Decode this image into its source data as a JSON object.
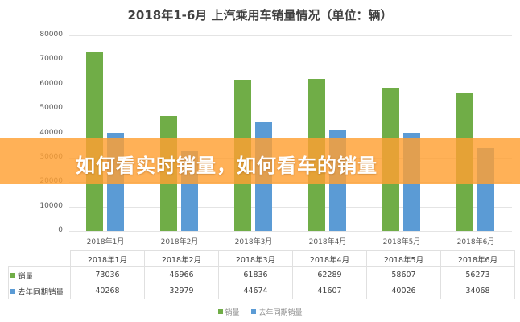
{
  "chart_data": {
    "type": "bar",
    "title": "2018年1-6月 上汽乘用车销量情况（单位：辆）",
    "categories": [
      "2018年1月",
      "2018年2月",
      "2018年3月",
      "2018年4月",
      "2018年5月",
      "2018年6月"
    ],
    "series": [
      {
        "name": "销量",
        "color": "#70ad47",
        "values": [
          73036,
          46966,
          61836,
          62289,
          58607,
          56273
        ]
      },
      {
        "name": "去年同期销量",
        "color": "#5b9bd5",
        "values": [
          40268,
          32979,
          44674,
          41607,
          40026,
          34068
        ]
      }
    ],
    "xlabel": "",
    "ylabel": "",
    "ylim": [
      0,
      80000
    ],
    "yticks": [
      "80000",
      "70000",
      "60000",
      "50000",
      "40000",
      "30000",
      "20000",
      "10000",
      "0"
    ],
    "grid": true,
    "legend_position": "bottom",
    "data_table": true
  },
  "table": {
    "header": [
      "2018年1月",
      "2018年2月",
      "2018年3月",
      "2018年4月",
      "2018年5月",
      "2018年6月"
    ],
    "rows": [
      {
        "label": "销量",
        "values": [
          "73036",
          "46966",
          "61836",
          "62289",
          "58607",
          "56273"
        ]
      },
      {
        "label": "去年同期销量",
        "values": [
          "40268",
          "32979",
          "44674",
          "41607",
          "40026",
          "34068"
        ]
      }
    ]
  },
  "legend": {
    "items": [
      "销量",
      "去年同期销量"
    ]
  },
  "banner": {
    "text": "如何看实时销量，如何看车的销量"
  }
}
